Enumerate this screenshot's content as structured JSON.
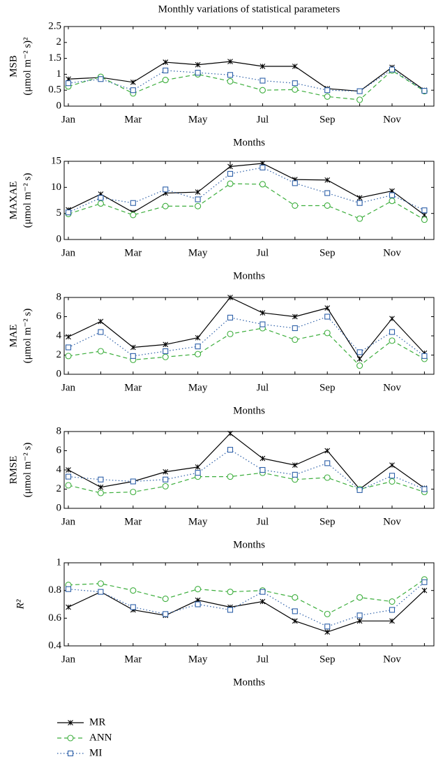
{
  "chart_data": [
    {
      "type": "line",
      "title": "Monthly variations of statistical parameters",
      "ylabel": [
        "MSB",
        "(μmol m⁻² s)²"
      ],
      "xlabel": "Months",
      "categories": [
        "Jan",
        null,
        "Mar",
        null,
        "May",
        null,
        "Jul",
        null,
        "Sep",
        null,
        "Nov",
        null
      ],
      "ylim": [
        0,
        2.5
      ],
      "yticks": [
        0,
        0.5,
        1,
        1.5,
        2,
        2.5
      ],
      "series": [
        {
          "color": "#000000",
          "marker": "star",
          "dash": "solid",
          "values": [
            0.85,
            0.9,
            0.75,
            1.38,
            1.3,
            1.4,
            1.25,
            1.25,
            0.55,
            0.47,
            1.22,
            0.5
          ]
        },
        {
          "color": "#3cae3c",
          "marker": "circle",
          "dash": "dashed",
          "values": [
            0.62,
            0.92,
            0.4,
            0.82,
            1.0,
            0.78,
            0.5,
            0.52,
            0.3,
            0.2,
            1.12,
            0.47
          ]
        },
        {
          "color": "#2c5fa8",
          "marker": "square",
          "dash": "dotted",
          "values": [
            0.72,
            0.85,
            0.5,
            1.12,
            1.05,
            0.98,
            0.8,
            0.72,
            0.5,
            0.47,
            1.15,
            0.48
          ]
        }
      ]
    },
    {
      "type": "line",
      "ylabel": [
        "MAXAE",
        "(μmol m⁻² s)"
      ],
      "xlabel": "Months",
      "categories": [
        "Jan",
        null,
        "Mar",
        null,
        "May",
        null,
        "Jul",
        null,
        "Sep",
        null,
        "Nov",
        null
      ],
      "ylim": [
        0,
        15
      ],
      "yticks": [
        0,
        5,
        10,
        15
      ],
      "series": [
        {
          "color": "#000000",
          "marker": "star",
          "dash": "solid",
          "values": [
            5.7,
            8.7,
            5.2,
            8.9,
            9.1,
            14,
            14.6,
            11.5,
            11.4,
            8,
            9.3,
            4.7
          ]
        },
        {
          "color": "#3cae3c",
          "marker": "circle",
          "dash": "dashed",
          "values": [
            4.9,
            6.9,
            4.7,
            6.4,
            6.4,
            10.7,
            10.6,
            6.5,
            6.5,
            4,
            7.4,
            3.8
          ]
        },
        {
          "color": "#2c5fa8",
          "marker": "square",
          "dash": "dotted",
          "values": [
            5.2,
            8,
            7,
            9.6,
            7.7,
            12.6,
            13.8,
            10.8,
            8.9,
            7,
            8.5,
            5.6
          ]
        }
      ]
    },
    {
      "type": "line",
      "ylabel": [
        "MAE",
        "(μmol m⁻² s)"
      ],
      "xlabel": "Months",
      "categories": [
        "Jan",
        null,
        "Mar",
        null,
        "May",
        null,
        "Jul",
        null,
        "Sep",
        null,
        "Nov",
        null
      ],
      "ylim": [
        0,
        8
      ],
      "yticks": [
        0,
        2,
        4,
        6,
        8
      ],
      "series": [
        {
          "color": "#000000",
          "marker": "star",
          "dash": "solid",
          "values": [
            3.9,
            5.5,
            2.8,
            3.1,
            3.8,
            8,
            6.4,
            6,
            6.9,
            1.6,
            5.8,
            2.2
          ]
        },
        {
          "color": "#3cae3c",
          "marker": "circle",
          "dash": "dashed",
          "values": [
            1.9,
            2.4,
            1.5,
            1.8,
            2.1,
            4.2,
            4.8,
            3.6,
            4.3,
            0.9,
            3.5,
            1.6
          ]
        },
        {
          "color": "#2c5fa8",
          "marker": "square",
          "dash": "dotted",
          "values": [
            2.8,
            4.4,
            1.9,
            2.4,
            2.9,
            5.9,
            5.2,
            4.8,
            6,
            2.3,
            4.4,
            1.9
          ]
        }
      ]
    },
    {
      "type": "line",
      "ylabel": [
        "RMSE",
        "(μmol m⁻² s)"
      ],
      "xlabel": "Months",
      "categories": [
        "Jan",
        null,
        "Mar",
        null,
        "May",
        null,
        "Jul",
        null,
        "Sep",
        null,
        "Nov",
        null
      ],
      "ylim": [
        0,
        8
      ],
      "yticks": [
        0,
        2,
        4,
        6,
        8
      ],
      "series": [
        {
          "color": "#000000",
          "marker": "star",
          "dash": "solid",
          "values": [
            4,
            2.2,
            2.8,
            3.8,
            4.3,
            7.8,
            5.2,
            4.5,
            6,
            2,
            4.5,
            2.1
          ]
        },
        {
          "color": "#3cae3c",
          "marker": "circle",
          "dash": "dashed",
          "values": [
            2.4,
            1.6,
            1.7,
            2.3,
            3.3,
            3.3,
            3.7,
            3,
            3.2,
            2,
            2.8,
            1.7
          ]
        },
        {
          "color": "#2c5fa8",
          "marker": "square",
          "dash": "dotted",
          "values": [
            3.3,
            3,
            2.8,
            3,
            3.7,
            6.1,
            4,
            3.5,
            4.7,
            1.9,
            3.4,
            2
          ]
        }
      ]
    },
    {
      "type": "line",
      "ylabel": [
        "R²"
      ],
      "xlabel": "Months",
      "categories": [
        "Jan",
        null,
        "Mar",
        null,
        "May",
        null,
        "Jul",
        null,
        "Sep",
        null,
        "Nov",
        null
      ],
      "ylim": [
        0.4,
        1
      ],
      "yticks": [
        0.4,
        0.6,
        0.8,
        1
      ],
      "series": [
        {
          "name": "MR",
          "color": "#000000",
          "marker": "star",
          "dash": "solid",
          "values": [
            0.68,
            0.79,
            0.66,
            0.62,
            0.73,
            0.68,
            0.72,
            0.58,
            0.5,
            0.58,
            0.58,
            0.8
          ]
        },
        {
          "name": "ANN",
          "color": "#3cae3c",
          "marker": "circle",
          "dash": "dashed",
          "values": [
            0.84,
            0.85,
            0.8,
            0.74,
            0.81,
            0.79,
            0.8,
            0.75,
            0.63,
            0.75,
            0.72,
            0.88
          ]
        },
        {
          "name": "MI",
          "color": "#2c5fa8",
          "marker": "square",
          "dash": "dotted",
          "values": [
            0.81,
            0.79,
            0.68,
            0.63,
            0.7,
            0.66,
            0.79,
            0.65,
            0.54,
            0.62,
            0.66,
            0.86
          ]
        }
      ]
    }
  ]
}
